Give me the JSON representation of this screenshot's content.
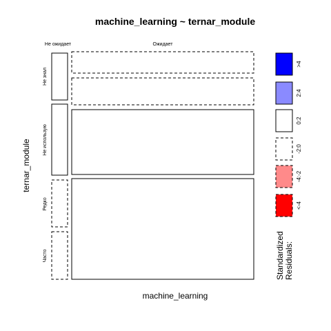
{
  "chart_data": {
    "type": "mosaic",
    "title": "machine_learning ~ ternar_module",
    "xlabel": "machine_learning",
    "ylabel": "ternar_module",
    "x_categories": [
      "Не ожидает",
      "Ожидает"
    ],
    "y_categories": [
      "Не знал",
      "Не использую",
      "Редко",
      "Часто"
    ],
    "cells": [
      {
        "x": "Не ожидает",
        "y": "Не знал",
        "x_share": 0.09,
        "y_share": 0.24,
        "border": "solid"
      },
      {
        "x": "Не ожидает",
        "y": "Не использую",
        "x_share": 0.09,
        "y_share": 0.33,
        "border": "solid"
      },
      {
        "x": "Не ожидает",
        "y": "Редко",
        "x_share": 0.09,
        "y_share": 0.23,
        "border": "dashed"
      },
      {
        "x": "Не ожидает",
        "y": "Часто",
        "x_share": 0.09,
        "y_share": 0.2,
        "border": "dashed"
      },
      {
        "x": "Ожидает",
        "y": "Не знал_a",
        "x_share": 0.91,
        "y_share": 0.1,
        "border": "dashed"
      },
      {
        "x": "Ожидает",
        "y": "Не знал_b",
        "x_share": 0.91,
        "y_share": 0.13,
        "border": "dashed"
      },
      {
        "x": "Ожидает",
        "y": "Не использую",
        "x_share": 0.91,
        "y_share": 0.33,
        "border": "solid"
      },
      {
        "x": "Ожидает",
        "y": "Редко+Часто",
        "x_share": 0.91,
        "y_share": 0.44,
        "border": "solid"
      }
    ],
    "legend": {
      "title": "Standardized\nResiduals:",
      "entries": [
        {
          "label": ">4",
          "color": "#0000ff",
          "border": "solid"
        },
        {
          "label": "2:4",
          "color": "#8a8aff",
          "border": "solid"
        },
        {
          "label": "0:2",
          "color": "#ffffff",
          "border": "solid"
        },
        {
          "label": "-2:0",
          "color": "#ffffff",
          "border": "dashed"
        },
        {
          "label": "-4:-2",
          "color": "#ff8a8a",
          "border": "dashed"
        },
        {
          "label": "<-4",
          "color": "#ff0000",
          "border": "dashed"
        }
      ]
    }
  }
}
